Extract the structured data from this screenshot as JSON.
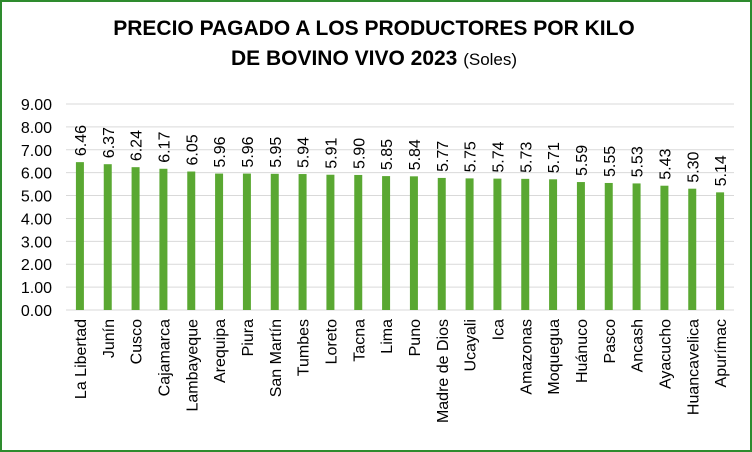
{
  "chart_data": {
    "type": "bar",
    "title_line1": "PRECIO PAGADO A LOS PRODUCTORES POR KILO",
    "title_line2": "DE BOVINO VIVO 2023",
    "title_unit": "(Soles)",
    "categories": [
      "La Libertad",
      "Junín",
      "Cusco",
      "Cajamarca",
      "Lambayeque",
      "Arequipa",
      "Piura",
      "San Martín",
      "Tumbes",
      "Loreto",
      "Tacna",
      "Lima",
      "Puno",
      "Madre de Dios",
      "Ucayali",
      "Ica",
      "Amazonas",
      "Moquegua",
      "Huánuco",
      "Pasco",
      "Ancash",
      "Ayacucho",
      "Huancavelica",
      "Apurímac"
    ],
    "values": [
      6.46,
      6.37,
      6.24,
      6.17,
      6.05,
      5.96,
      5.96,
      5.95,
      5.94,
      5.91,
      5.9,
      5.85,
      5.84,
      5.77,
      5.75,
      5.74,
      5.73,
      5.71,
      5.59,
      5.55,
      5.53,
      5.43,
      5.3,
      5.14
    ],
    "value_labels": [
      "6.46",
      "6.37",
      "6.24",
      "6.17",
      "6.05",
      "5.96",
      "5.96",
      "5.95",
      "5.94",
      "5.91",
      "5.90",
      "5.85",
      "5.84",
      "5.77",
      "5.75",
      "5.74",
      "5.73",
      "5.71",
      "5.59",
      "5.55",
      "5.53",
      "5.43",
      "5.30",
      "5.14"
    ],
    "ylim": [
      0,
      9
    ],
    "yticks": [
      "0.00",
      "1.00",
      "2.00",
      "3.00",
      "4.00",
      "5.00",
      "6.00",
      "7.00",
      "8.00",
      "9.00"
    ],
    "grid": true,
    "bar_color": "#5aa832",
    "grid_color": "#d9d9d9",
    "border_color": "#2e8b2e"
  }
}
